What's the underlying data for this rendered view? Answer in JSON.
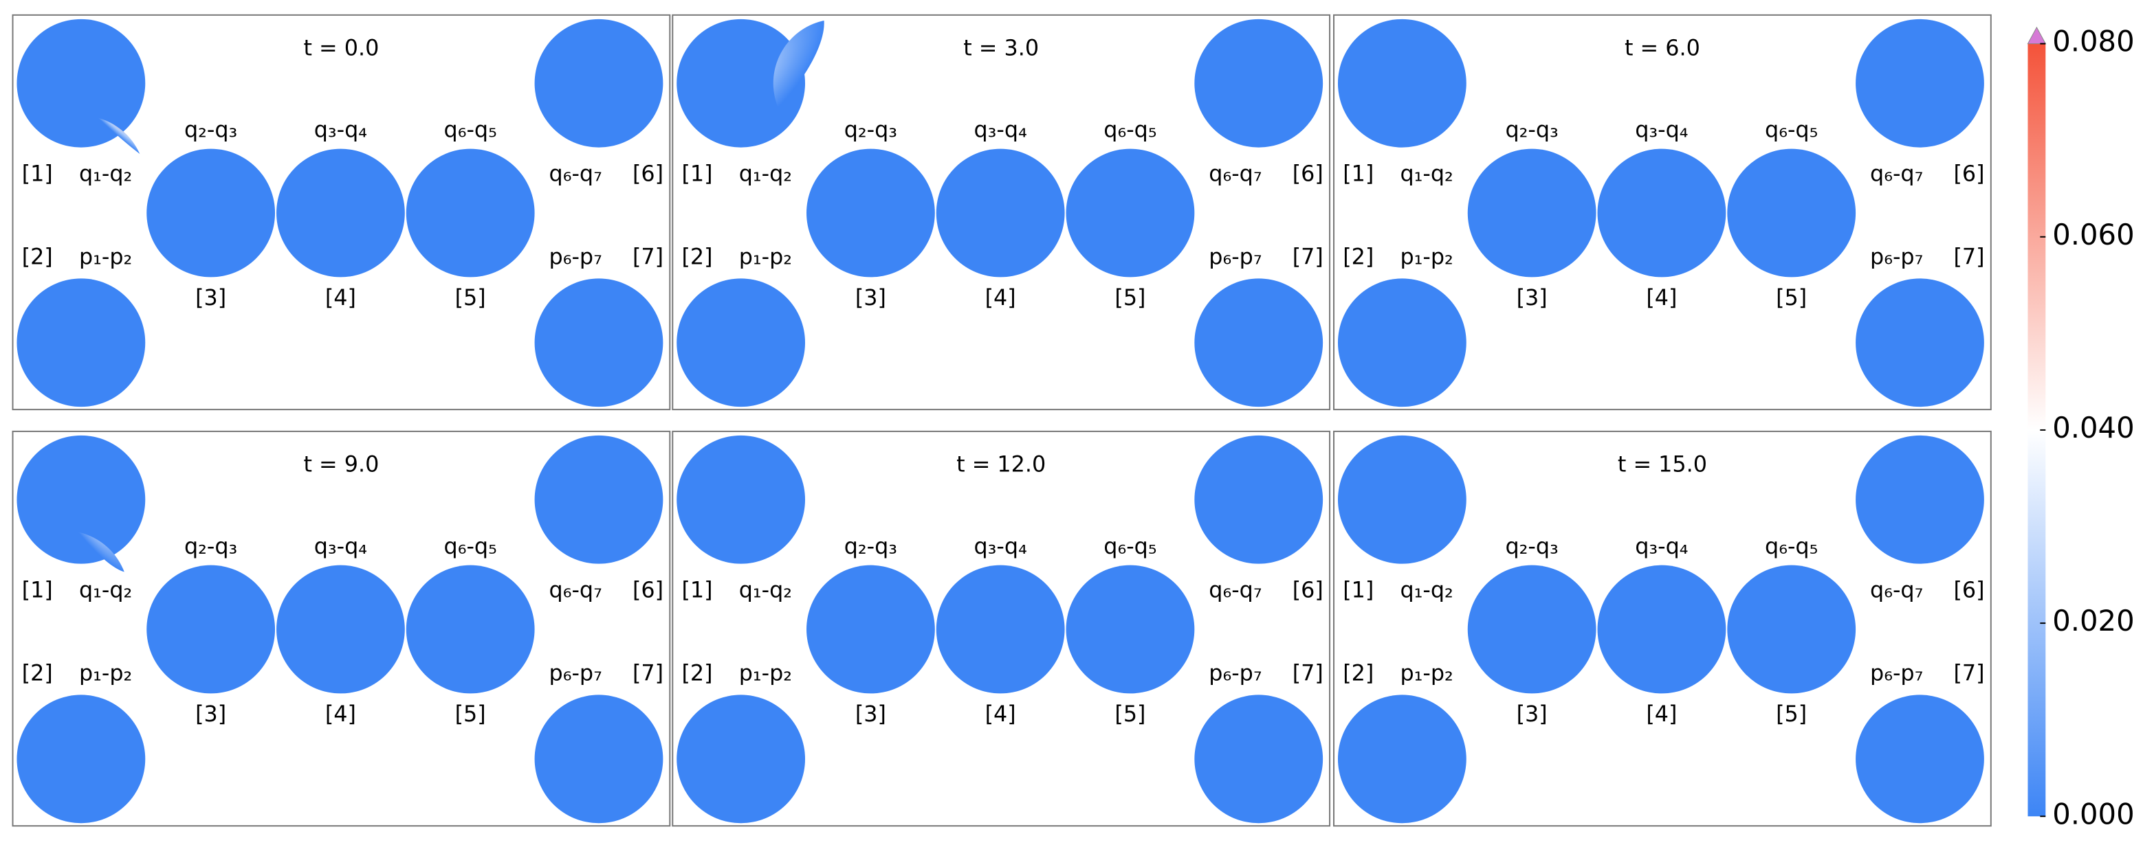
{
  "chart_data": {
    "type": "phase-space-grid",
    "panels": [
      {
        "title": "t = 0.0"
      },
      {
        "title": "t = 3.0"
      },
      {
        "title": "t = 6.0"
      },
      {
        "title": "t = 9.0"
      },
      {
        "title": "t = 12.0"
      },
      {
        "title": "t = 15.0"
      }
    ],
    "subplots": [
      {
        "index": "[1]",
        "label": "q₁-q₂"
      },
      {
        "index": "[2]",
        "label": "p₁-p₂"
      },
      {
        "index": "[3]",
        "label": "q₂-q₃"
      },
      {
        "index": "[4]",
        "label": "q₃-q₄"
      },
      {
        "index": "[5]",
        "label": "q₆-q₅"
      },
      {
        "index": "[6]",
        "label": "q₆-q₇"
      },
      {
        "index": "[7]",
        "label": "p₆-p₇"
      }
    ],
    "colorbar": {
      "clim": [
        0,
        0.08
      ],
      "ticks": [
        {
          "value": 0,
          "label": "0.000"
        },
        {
          "value": 0.02,
          "label": "0.020"
        },
        {
          "value": 0.04,
          "label": "0.040"
        },
        {
          "value": 0.06,
          "label": "0.060"
        },
        {
          "value": 0.08,
          "label": "0.080"
        }
      ],
      "colors": [
        "#3d85f5",
        "#ffffff",
        "#f4533a"
      ],
      "extend_color": "#d67ad6"
    }
  }
}
